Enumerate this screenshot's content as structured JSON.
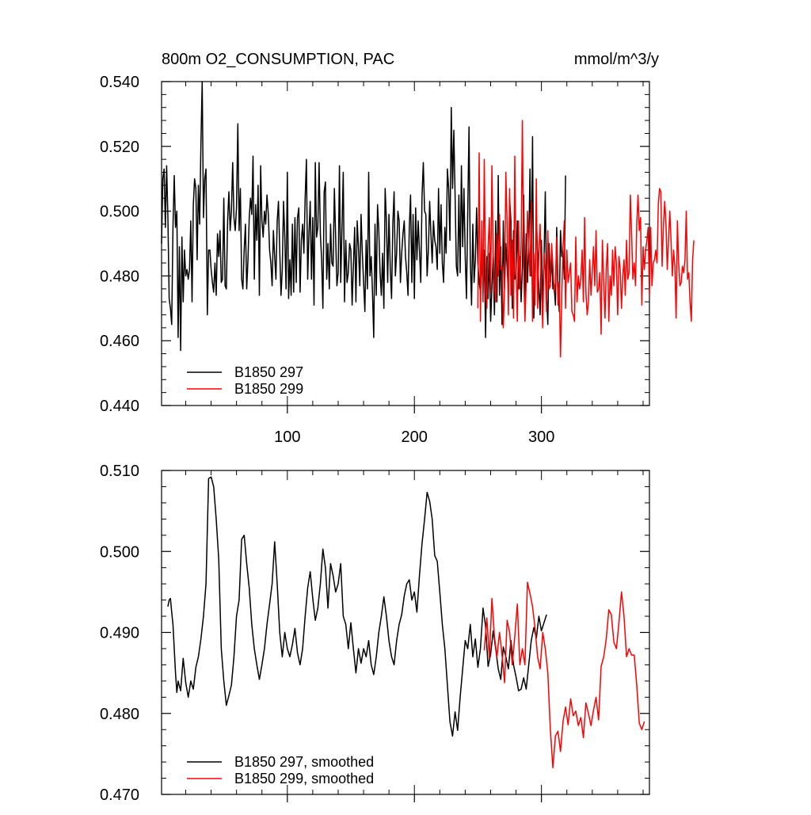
{
  "figure": {
    "title_left": "800m O2_CONSUMPTION, PAC",
    "title_right": "mmol/m^3/y"
  },
  "colors": {
    "run_297": "#000000",
    "run_299": "#ff0000"
  },
  "chart_data": [
    {
      "type": "line",
      "title": "800m O2_CONSUMPTION, PAC",
      "units": "mmol/m^3/y",
      "xlim": [
        1,
        385
      ],
      "ylim": [
        0.44,
        0.54
      ],
      "yticks": [
        "0.440",
        "0.460",
        "0.480",
        "0.500",
        "0.520",
        "0.540"
      ],
      "xticks": [
        "100",
        "200",
        "300"
      ],
      "grid": false,
      "legend": {
        "position": "bottom-left",
        "entries": [
          "B1850 297",
          "B1850 299"
        ]
      },
      "series": [
        {
          "name": "B1850 297",
          "color": "#000000",
          "x_start": 1,
          "values": [
            0.49,
            0.51,
            0.513,
            0.495,
            0.514,
            0.498,
            0.473,
            0.47,
            0.465,
            0.495,
            0.511,
            0.495,
            0.5,
            0.461,
            0.489,
            0.457,
            0.492,
            0.472,
            0.488,
            0.48,
            0.482,
            0.479,
            0.482,
            0.497,
            0.472,
            0.502,
            0.51,
            0.507,
            0.485,
            0.508,
            0.496,
            0.521,
            0.54,
            0.498,
            0.51,
            0.513,
            0.468,
            0.488,
            0.488,
            0.482,
            0.478,
            0.475,
            0.484,
            0.474,
            0.493,
            0.486,
            0.494,
            0.478,
            0.479,
            0.504,
            0.477,
            0.476,
            0.497,
            0.506,
            0.494,
            0.5,
            0.515,
            0.498,
            0.494,
            0.501,
            0.527,
            0.494,
            0.507,
            0.479,
            0.476,
            0.488,
            0.496,
            0.476,
            0.485,
            0.498,
            0.504,
            0.499,
            0.517,
            0.479,
            0.502,
            0.491,
            0.508,
            0.474,
            0.514,
            0.497,
            0.492,
            0.5,
            0.496,
            0.505,
            0.499,
            0.488,
            0.484,
            0.477,
            0.494,
            0.486,
            0.479,
            0.497,
            0.503,
            0.488,
            0.474,
            0.482,
            0.503,
            0.492,
            0.476,
            0.512,
            0.473,
            0.485,
            0.474,
            0.496,
            0.475,
            0.498,
            0.478,
            0.498,
            0.501,
            0.475,
            0.491,
            0.496,
            0.487,
            0.504,
            0.516,
            0.479,
            0.493,
            0.503,
            0.479,
            0.498,
            0.471,
            0.515,
            0.492,
            0.495,
            0.515,
            0.493,
            0.485,
            0.47,
            0.506,
            0.509,
            0.479,
            0.49,
            0.476,
            0.496,
            0.484,
            0.483,
            0.507,
            0.492,
            0.477,
            0.481,
            0.514,
            0.478,
            0.495,
            0.512,
            0.472,
            0.491,
            0.478,
            0.481,
            0.49,
            0.488,
            0.471,
            0.483,
            0.495,
            0.472,
            0.497,
            0.489,
            0.477,
            0.499,
            0.487,
            0.478,
            0.469,
            0.491,
            0.476,
            0.512,
            0.48,
            0.486,
            0.475,
            0.461,
            0.496,
            0.474,
            0.502,
            0.494,
            0.481,
            0.474,
            0.487,
            0.47,
            0.507,
            0.497,
            0.478,
            0.499,
            0.482,
            0.473,
            0.496,
            0.506,
            0.48,
            0.487,
            0.5,
            0.497,
            0.478,
            0.487,
            0.493,
            0.497,
            0.486,
            0.481,
            0.474,
            0.495,
            0.505,
            0.478,
            0.499,
            0.473,
            0.501,
            0.485,
            0.497,
            0.488,
            0.478,
            0.505,
            0.515,
            0.5,
            0.499,
            0.48,
            0.488,
            0.503,
            0.493,
            0.484,
            0.497,
            0.491,
            0.489,
            0.482,
            0.507,
            0.487,
            0.502,
            0.484,
            0.478,
            0.495,
            0.487,
            0.513,
            0.507,
            0.491,
            0.532,
            0.507,
            0.525,
            0.505,
            0.483,
            0.48,
            0.505,
            0.481,
            0.514,
            0.489,
            0.507,
            0.486,
            0.473,
            0.5,
            0.526,
            0.485,
            0.471,
            0.496,
            0.478,
            0.485,
            0.501,
            0.484,
            0.478,
            0.475,
            0.486,
            0.475,
            0.488,
            0.461,
            0.486,
            0.473,
            0.487,
            0.466,
            0.476,
            0.486,
            0.468,
            0.497,
            0.472,
            0.511,
            0.474,
            0.489,
            0.465,
            0.497,
            0.476,
            0.49,
            0.483,
            0.474,
            0.504,
            0.497,
            0.47,
            0.494,
            0.479,
            0.48,
            0.497,
            0.476,
            0.486,
            0.472,
            0.483,
            0.505,
            0.471,
            0.493,
            0.478,
            0.489,
            0.513,
            0.48,
            0.523,
            0.467,
            0.479,
            0.499,
            0.486,
            0.476,
            0.468,
            0.491,
            0.471,
            0.485,
            0.506,
            0.474,
            0.465,
            0.49,
            0.478,
            0.486,
            0.476,
            0.477,
            0.471,
            0.495,
            0.478,
            0.469,
            0.494,
            0.486,
            0.488,
            0.479,
            0.511
          ]
        },
        {
          "name": "B1850 299",
          "color": "#ff0000",
          "x_start": 250,
          "values": [
            0.47,
            0.518,
            0.466,
            0.497,
            0.472,
            0.516,
            0.477,
            0.47,
            0.489,
            0.498,
            0.475,
            0.514,
            0.487,
            0.477,
            0.472,
            0.493,
            0.48,
            0.499,
            0.482,
            0.483,
            0.464,
            0.476,
            0.512,
            0.496,
            0.468,
            0.507,
            0.474,
            0.491,
            0.467,
            0.517,
            0.482,
            0.466,
            0.497,
            0.476,
            0.49,
            0.528,
            0.483,
            0.466,
            0.478,
            0.5,
            0.49,
            0.48,
            0.503,
            0.466,
            0.487,
            0.471,
            0.51,
            0.47,
            0.488,
            0.496,
            0.477,
            0.464,
            0.487,
            0.482,
            0.469,
            0.494,
            0.476,
            0.477,
            0.49,
            0.483,
            0.475,
            0.478,
            0.492,
            0.471,
            0.478,
            0.455,
            0.474,
            0.489,
            0.497,
            0.47,
            0.488,
            0.478,
            0.481,
            0.484,
            0.469,
            0.468,
            0.466,
            0.492,
            0.472,
            0.48,
            0.476,
            0.479,
            0.488,
            0.472,
            0.498,
            0.475,
            0.468,
            0.472,
            0.485,
            0.474,
            0.481,
            0.489,
            0.477,
            0.494,
            0.475,
            0.476,
            0.481,
            0.462,
            0.491,
            0.478,
            0.467,
            0.482,
            0.49,
            0.466,
            0.48,
            0.474,
            0.488,
            0.477,
            0.489,
            0.484,
            0.468,
            0.486,
            0.482,
            0.47,
            0.48,
            0.485,
            0.474,
            0.491,
            0.479,
            0.481,
            0.505,
            0.493,
            0.479,
            0.484,
            0.477,
            0.496,
            0.505,
            0.494,
            0.498,
            0.471,
            0.489,
            0.482,
            0.488,
            0.491,
            0.495,
            0.474,
            0.495,
            0.477,
            0.484,
            0.485,
            0.488,
            0.484,
            0.502,
            0.507,
            0.506,
            0.483,
            0.495,
            0.503,
            0.496,
            0.482,
            0.491,
            0.5,
            0.491,
            0.48,
            0.488,
            0.483,
            0.467,
            0.497,
            0.484,
            0.477,
            0.478,
            0.483,
            0.481,
            0.485,
            0.5,
            0.479,
            0.481,
            0.472,
            0.466,
            0.485,
            0.491
          ]
        }
      ]
    },
    {
      "type": "line",
      "xlim": [
        1,
        385
      ],
      "ylim": [
        0.47,
        0.51
      ],
      "yticks": [
        "0.470",
        "0.480",
        "0.490",
        "0.500",
        "0.510"
      ],
      "grid": false,
      "legend": {
        "position": "bottom-left",
        "entries": [
          "B1850 297, smoothed",
          "B1850 299, smoothed"
        ]
      },
      "series": [
        {
          "name": "B1850 297, smoothed",
          "color": "#000000",
          "x": [
            6,
            7,
            8,
            9,
            10,
            11,
            12,
            13,
            14,
            16,
            18,
            20,
            22,
            24,
            26,
            28,
            30,
            32,
            34,
            36,
            38,
            40,
            42,
            44,
            46,
            48,
            50,
            52,
            54,
            56,
            58,
            60,
            62,
            64,
            66,
            68,
            70,
            72,
            74,
            76,
            78,
            80,
            82,
            84,
            86,
            88,
            90,
            92,
            94,
            96,
            98,
            100,
            102,
            104,
            106,
            108,
            110,
            112,
            114,
            116,
            118,
            120,
            122,
            124,
            126,
            128,
            130,
            132,
            134,
            136,
            138,
            140,
            142,
            144,
            146,
            148,
            150,
            152,
            154,
            156,
            158,
            160,
            162,
            164,
            166,
            168,
            170,
            172,
            174,
            176,
            178,
            180,
            182,
            184,
            186,
            188,
            190,
            192,
            194,
            196,
            198,
            200,
            202,
            204,
            206,
            208,
            210,
            212,
            214,
            216,
            218,
            220,
            222,
            224,
            226,
            228,
            230,
            232,
            234,
            236,
            238,
            240,
            242,
            244,
            246,
            248,
            250,
            252,
            254,
            256,
            258,
            260,
            262,
            264,
            266,
            268,
            270,
            272,
            274,
            276,
            278,
            280,
            282,
            284,
            286,
            288,
            290,
            292,
            294,
            296,
            298,
            300,
            302,
            304
          ],
          "values": [
            0.4932,
            0.494,
            0.4942,
            0.4925,
            0.491,
            0.488,
            0.485,
            0.4826,
            0.484,
            0.4828,
            0.4868,
            0.4838,
            0.482,
            0.484,
            0.483,
            0.4857,
            0.487,
            0.4892,
            0.492,
            0.496,
            0.509,
            0.5092,
            0.508,
            0.504,
            0.499,
            0.488,
            0.484,
            0.481,
            0.4822,
            0.4835,
            0.487,
            0.492,
            0.494,
            0.5015,
            0.502,
            0.4985,
            0.4955,
            0.491,
            0.488,
            0.486,
            0.4842,
            0.486,
            0.488,
            0.491,
            0.4935,
            0.496,
            0.5012,
            0.496,
            0.49,
            0.487,
            0.49,
            0.488,
            0.487,
            0.4885,
            0.4905,
            0.4875,
            0.486,
            0.488,
            0.492,
            0.4955,
            0.4975,
            0.4942,
            0.4915,
            0.493,
            0.496,
            0.5003,
            0.498,
            0.493,
            0.4985,
            0.497,
            0.495,
            0.496,
            0.4985,
            0.492,
            0.491,
            0.488,
            0.4912,
            0.488,
            0.485,
            0.488,
            0.4862,
            0.488,
            0.487,
            0.489,
            0.486,
            0.4848,
            0.487,
            0.49,
            0.492,
            0.4944,
            0.492,
            0.489,
            0.487,
            0.486,
            0.489,
            0.491,
            0.4922,
            0.4945,
            0.496,
            0.4965,
            0.494,
            0.495,
            0.4925,
            0.497,
            0.501,
            0.504,
            0.5073,
            0.5062,
            0.504,
            0.4995,
            0.4988,
            0.495,
            0.491,
            0.488,
            0.4835,
            0.479,
            0.4772,
            0.4802,
            0.4779,
            0.482,
            0.4855,
            0.489,
            0.488,
            0.491,
            0.487,
            0.4892,
            0.4857,
            0.488,
            0.493,
            0.4908,
            0.4858,
            0.4873,
            0.4902,
            0.488,
            0.4855,
            0.4842,
            0.4882,
            0.487,
            0.4855,
            0.489,
            0.486,
            0.4845,
            0.4828,
            0.483,
            0.4844,
            0.483,
            0.486,
            0.489,
            0.4906,
            0.4893,
            0.492,
            0.4902,
            0.4912,
            0.4922
          ]
        },
        {
          "name": "B1850 299, smoothed",
          "color": "#ff0000",
          "x": [
            255,
            257,
            259,
            261,
            263,
            265,
            267,
            269,
            271,
            273,
            275,
            277,
            279,
            281,
            283,
            285,
            287,
            289,
            291,
            293,
            295,
            297,
            299,
            301,
            303,
            305,
            307,
            309,
            311,
            313,
            315,
            317,
            319,
            321,
            323,
            325,
            327,
            329,
            331,
            333,
            335,
            337,
            339,
            341,
            343,
            345,
            347,
            349,
            351,
            353,
            355,
            357,
            359,
            361,
            363,
            365,
            367,
            369,
            371,
            373,
            375,
            377,
            379,
            381
          ],
          "values": [
            0.4878,
            0.4918,
            0.4868,
            0.4942,
            0.4895,
            0.487,
            0.49,
            0.4872,
            0.4838,
            0.4915,
            0.49,
            0.486,
            0.4895,
            0.4935,
            0.486,
            0.488,
            0.486,
            0.4962,
            0.4948,
            0.4932,
            0.4905,
            0.487,
            0.4855,
            0.49,
            0.488,
            0.485,
            0.478,
            0.4733,
            0.4772,
            0.4778,
            0.4753,
            0.479,
            0.4808,
            0.4786,
            0.4818,
            0.4797,
            0.4803,
            0.4785,
            0.4795,
            0.477,
            0.4813,
            0.48,
            0.4785,
            0.4804,
            0.482,
            0.4792,
            0.4858,
            0.487,
            0.4892,
            0.4928,
            0.4922,
            0.4888,
            0.488,
            0.4912,
            0.495,
            0.492,
            0.487,
            0.488,
            0.4872,
            0.4872,
            0.4835,
            0.4788,
            0.478,
            0.479
          ]
        }
      ]
    }
  ]
}
